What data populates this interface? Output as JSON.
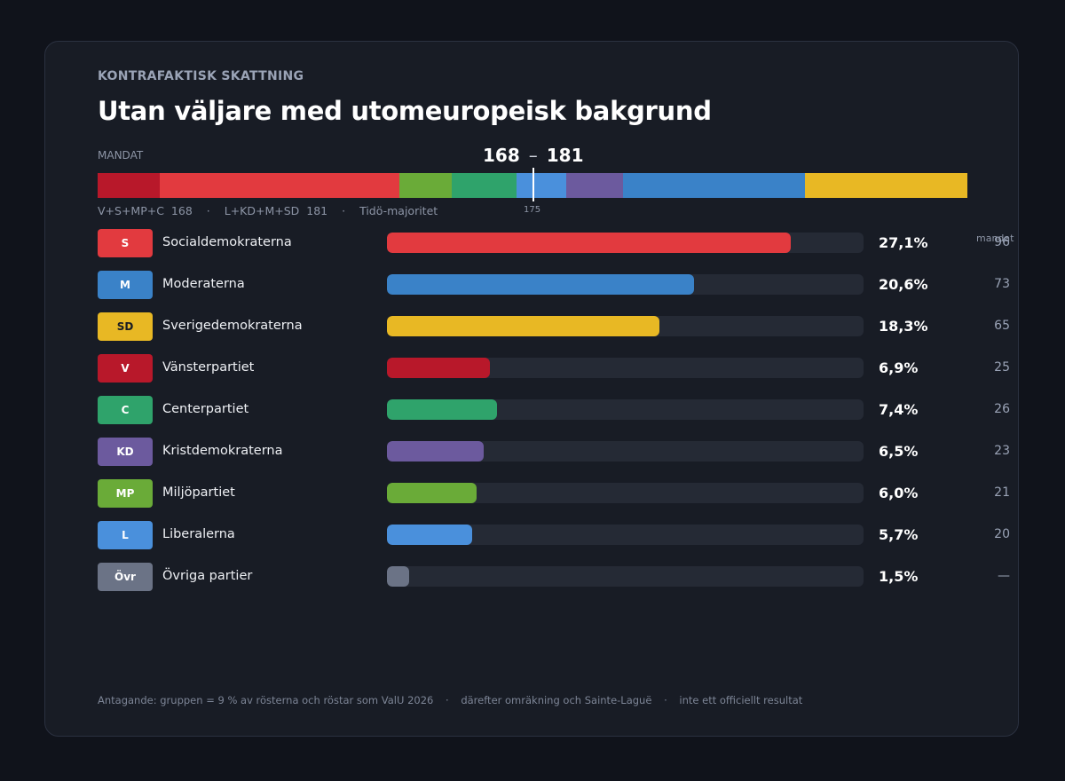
{
  "header": {
    "eyebrow": "KONTRAFAKTISK SKATTNING",
    "title": "Utan väljare med utomeuropeisk bakgrund"
  },
  "mandat": {
    "label": "MANDAT",
    "left_total": "168",
    "range_sep": "–",
    "right_total": "181",
    "majority_label": "175",
    "coalition_left_name": "V+S+MP+C",
    "coalition_left_seats": "168",
    "coalition_right_name": "L+KD+M+SD",
    "coalition_right_seats": "181",
    "majority_name": "Tidö-majoritet",
    "separator": "·"
  },
  "column_header": "mandat",
  "footer": {
    "part1": "Antagande: gruppen = 9 % av rösterna och röstar som ValU 2026",
    "part2": "därefter omräkning och Sainte-Laguë",
    "part3": "inte ett officiellt resultat",
    "separator": "·"
  },
  "chart_data": {
    "type": "bar",
    "xlim": [
      0,
      27.1
    ],
    "seat_total": 349,
    "majority": 175,
    "seat_order": [
      "V",
      "S",
      "MP",
      "C",
      "L",
      "KD",
      "M",
      "SD"
    ],
    "parties": [
      {
        "abbr": "S",
        "name": "Socialdemokraterna",
        "percent": 27.1,
        "percent_label": "27,1%",
        "seats": 96,
        "seats_label": "96",
        "color": "#e23a3f",
        "badge_text_color": "#ffffff"
      },
      {
        "abbr": "M",
        "name": "Moderaterna",
        "percent": 20.6,
        "percent_label": "20,6%",
        "seats": 73,
        "seats_label": "73",
        "color": "#3a82c8",
        "badge_text_color": "#ffffff"
      },
      {
        "abbr": "SD",
        "name": "Sverigedemokraterna",
        "percent": 18.3,
        "percent_label": "18,3%",
        "seats": 65,
        "seats_label": "65",
        "color": "#e8b824",
        "badge_text_color": "#1a1d24"
      },
      {
        "abbr": "V",
        "name": "Vänsterpartiet",
        "percent": 6.9,
        "percent_label": "6,9%",
        "seats": 25,
        "seats_label": "25",
        "color": "#b8182a",
        "badge_text_color": "#ffffff"
      },
      {
        "abbr": "C",
        "name": "Centerpartiet",
        "percent": 7.4,
        "percent_label": "7,4%",
        "seats": 26,
        "seats_label": "26",
        "color": "#2fa36b",
        "badge_text_color": "#ffffff"
      },
      {
        "abbr": "KD",
        "name": "Kristdemokraterna",
        "percent": 6.5,
        "percent_label": "6,5%",
        "seats": 23,
        "seats_label": "23",
        "color": "#6c5a9e",
        "badge_text_color": "#ffffff"
      },
      {
        "abbr": "MP",
        "name": "Miljöpartiet",
        "percent": 6.0,
        "percent_label": "6,0%",
        "seats": 21,
        "seats_label": "21",
        "color": "#6aab38",
        "badge_text_color": "#ffffff"
      },
      {
        "abbr": "L",
        "name": "Liberalerna",
        "percent": 5.7,
        "percent_label": "5,7%",
        "seats": 20,
        "seats_label": "20",
        "color": "#4a90dc",
        "badge_text_color": "#ffffff"
      },
      {
        "abbr": "Övr",
        "name": "Övriga partier",
        "percent": 1.5,
        "percent_label": "1,5%",
        "seats": null,
        "seats_label": "—",
        "color": "#6b7386",
        "badge_text_color": "#ffffff"
      }
    ]
  }
}
